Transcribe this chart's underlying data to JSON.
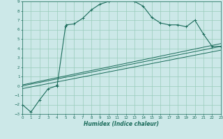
{
  "xlabel": "Humidex (Indice chaleur)",
  "bg_color": "#cce8e8",
  "grid_color": "#99ccbb",
  "line_color": "#1a6b5a",
  "xlim": [
    0,
    23
  ],
  "ylim": [
    -3,
    9
  ],
  "xticks": [
    0,
    1,
    2,
    3,
    4,
    5,
    6,
    7,
    8,
    9,
    10,
    11,
    12,
    13,
    14,
    15,
    16,
    17,
    18,
    19,
    20,
    21,
    22,
    23
  ],
  "yticks": [
    -3,
    -2,
    -1,
    0,
    1,
    2,
    3,
    4,
    5,
    6,
    7,
    8,
    9
  ],
  "curve1_x": [
    0,
    1,
    2,
    3,
    4,
    4.05,
    5,
    5.1,
    6,
    7,
    8,
    9,
    10,
    11,
    12,
    12.5,
    13,
    14,
    15,
    16,
    17,
    18,
    19,
    20,
    21,
    22,
    23
  ],
  "curve1_y": [
    -2.0,
    -2.8,
    -1.5,
    -0.3,
    0.0,
    0.1,
    6.3,
    6.5,
    6.6,
    7.2,
    8.1,
    8.7,
    9.0,
    9.3,
    9.5,
    9.6,
    9.0,
    8.5,
    7.3,
    6.7,
    6.5,
    6.5,
    6.3,
    7.0,
    5.5,
    4.2,
    4.2
  ],
  "line1_x": [
    0,
    23
  ],
  "line1_y": [
    0.0,
    4.2
  ],
  "line2_x": [
    0,
    23
  ],
  "line2_y": [
    0.1,
    4.5
  ],
  "line3_x": [
    0,
    23
  ],
  "line3_y": [
    -0.3,
    3.8
  ]
}
